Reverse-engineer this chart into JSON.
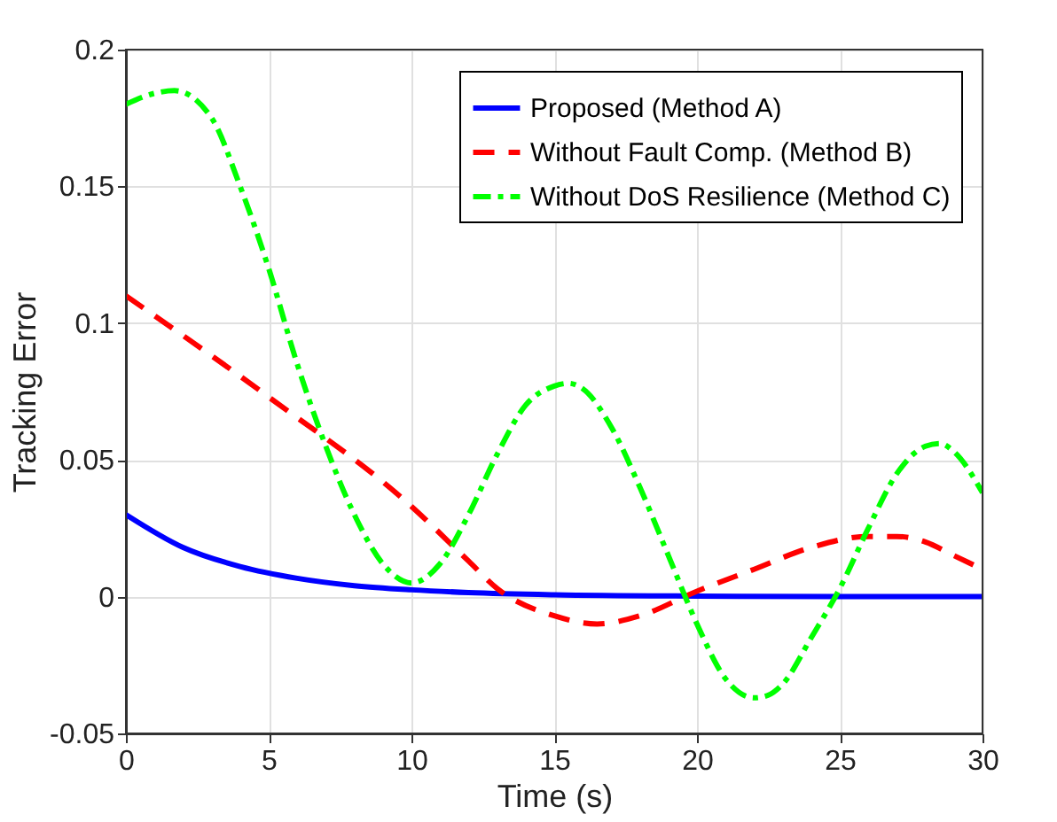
{
  "chart_data": {
    "type": "line",
    "xlabel": "Time (s)",
    "ylabel": "Tracking Error",
    "xlim": [
      0,
      30
    ],
    "xticks": [
      0,
      5,
      10,
      15,
      20,
      25,
      30
    ],
    "ylim": [
      -0.05,
      0.2
    ],
    "yticks": [
      -0.05,
      0,
      0.05,
      0.1,
      0.15,
      0.2
    ],
    "grid": true,
    "legend": "top right",
    "marker": "none",
    "series": [
      {
        "name": "Proposed (Method A)",
        "color": "#0000ff",
        "line_style": "solid",
        "x": [
          0,
          2,
          4,
          6,
          8,
          10,
          12,
          15,
          20,
          25,
          30
        ],
        "values": [
          0.03,
          0.018,
          0.011,
          0.0067,
          0.004,
          0.0025,
          0.0015,
          0.0007,
          0.0002,
          0,
          0
        ]
      },
      {
        "name": "Without Fault Comp. (Method B)",
        "color": "#ff0000",
        "line_style": "dashed",
        "x": [
          0,
          5,
          10,
          12,
          13,
          15,
          16.5,
          18,
          20,
          22,
          24,
          26,
          27,
          28,
          29,
          30
        ],
        "values": [
          0.11,
          0.073,
          0.033,
          0.013,
          0.003,
          -0.007,
          -0.01,
          -0.007,
          0.002,
          0.01,
          0.018,
          0.022,
          0.022,
          0.02,
          0.015,
          0.01
        ]
      },
      {
        "name": "Without DoS Resilience (Method C)",
        "color": "#00ff00",
        "line_style": "dashdot",
        "x": [
          0,
          1,
          1.7,
          3,
          4,
          5,
          6,
          7,
          8,
          9,
          10,
          11,
          12,
          13,
          14,
          15,
          15.5,
          16,
          17,
          18,
          19,
          20,
          21,
          22,
          22.5,
          23,
          24,
          25,
          26,
          27,
          28,
          28.5,
          29,
          30
        ],
        "values": [
          0.18,
          0.184,
          0.185,
          0.175,
          0.15,
          0.12,
          0.085,
          0.055,
          0.03,
          0.012,
          0.005,
          0.012,
          0.03,
          0.052,
          0.07,
          0.077,
          0.078,
          0.076,
          0.062,
          0.04,
          0.015,
          -0.01,
          -0.03,
          -0.037,
          -0.036,
          -0.032,
          -0.015,
          0.003,
          0.025,
          0.045,
          0.055,
          0.056,
          0.053,
          0.038
        ]
      }
    ]
  }
}
